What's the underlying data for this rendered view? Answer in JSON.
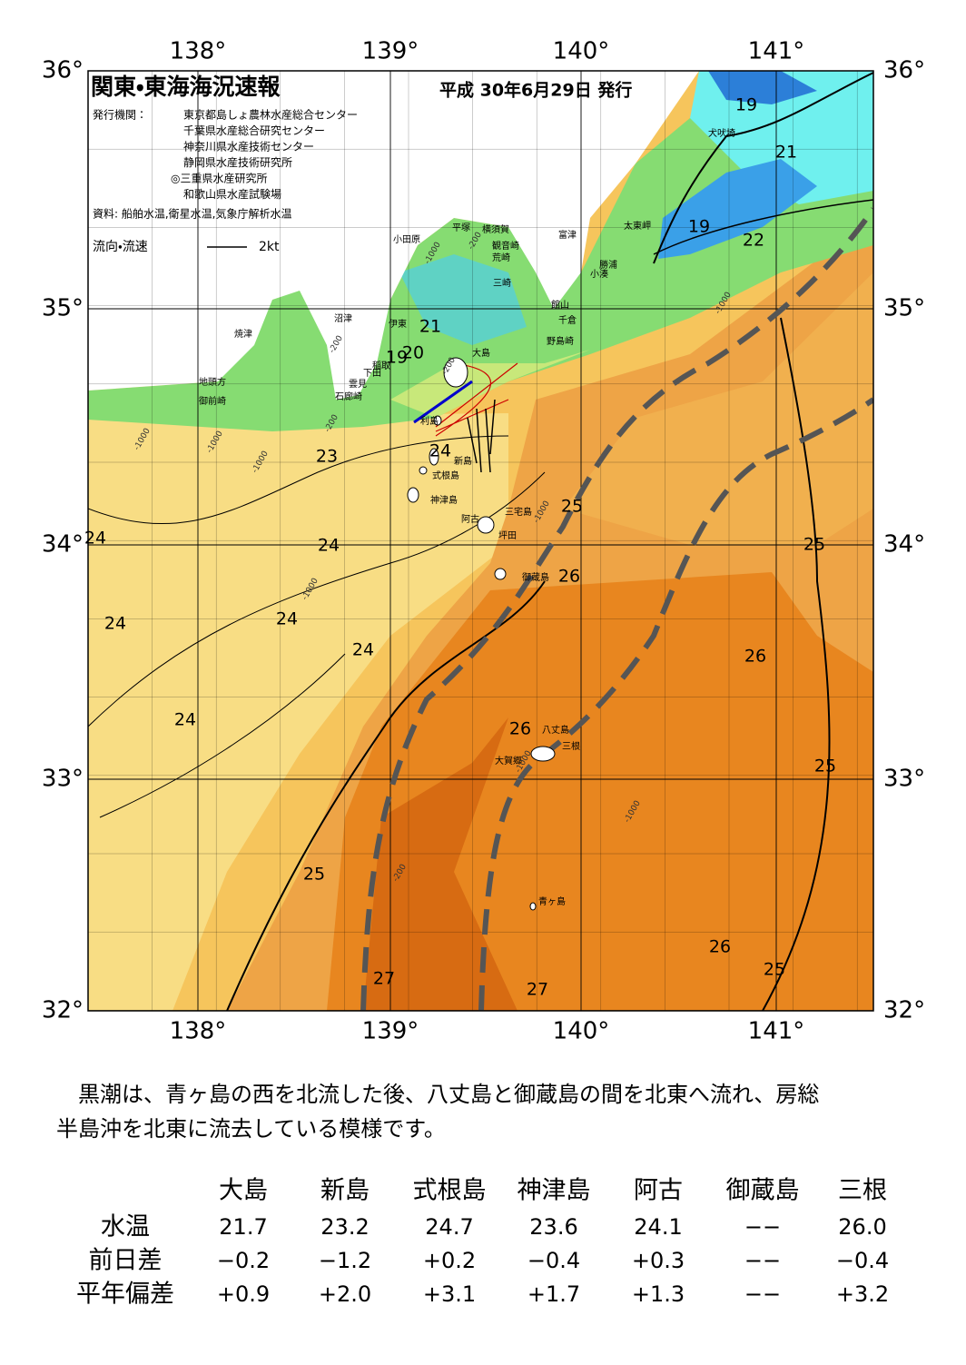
{
  "header": {
    "title": "関東・東海海況速報",
    "date": "平成 30年6月29日 発行",
    "publisher_label": "発行機関：",
    "publishers": [
      "東京都島しょ農林水産総合センター",
      "千葉県水産総合研究センター",
      "神奈川県水産技術センター",
      "静岡県水産技術研究所",
      "◎三重県水産研究所",
      "和歌山県水産試験場"
    ],
    "source": "資料: 船舶水温,衛星水温,気象庁解析水温",
    "legend_label": "流向・流速",
    "legend_speed": "2kt"
  },
  "map": {
    "lon_labels": [
      "138°",
      "139°",
      "140°",
      "141°"
    ],
    "lat_labels": [
      "36°",
      "35°",
      "34°",
      "33°",
      "32°"
    ],
    "isotherm_labels": [
      "19",
      "21",
      "19",
      "22",
      "21",
      "19",
      "20",
      "23",
      "24",
      "25",
      "24",
      "24",
      "26",
      "25",
      "24",
      "24",
      "24",
      "26",
      "24",
      "26",
      "25",
      "25",
      "26",
      "25",
      "27",
      "27"
    ],
    "depth_labels": [
      "-200",
      "-1000",
      "-200",
      "-1000",
      "-200",
      "-1000",
      "-200",
      "-1000",
      "-1000",
      "-1000",
      "-1000",
      "-1000",
      "-200",
      "-1000"
    ],
    "place_names": [
      "犬吠埼",
      "太東岬",
      "勝浦",
      "小湊",
      "館山",
      "千倉",
      "野島崎",
      "富津",
      "三崎",
      "観音崎",
      "荒崎",
      "横須賀",
      "平塚",
      "小田原",
      "沼津",
      "伊東",
      "稲取",
      "下田",
      "雲見",
      "石廊崎",
      "焼津",
      "地頭方",
      "御前崎",
      "大島",
      "利島",
      "新島",
      "式根島",
      "神津島",
      "三宅島",
      "阿古",
      "坪田",
      "御蔵島",
      "八丈島",
      "三根",
      "大賀郷",
      "青ヶ島"
    ]
  },
  "summary": {
    "lines": [
      "　黒潮は、青ヶ島の西を北流した後、八丈島と御蔵島の間を北東へ流れ、房総",
      "半島沖を北東に流去している模様です。"
    ]
  },
  "table": {
    "columns": [
      "大島",
      "新島",
      "式根島",
      "神津島",
      "阿古",
      "御蔵島",
      "三根"
    ],
    "rows": [
      {
        "label": "水温",
        "values": [
          "21.7",
          "23.2",
          "24.7",
          "23.6",
          "24.1",
          "−−",
          "26.0"
        ]
      },
      {
        "label": "前日差",
        "values": [
          "−0.2",
          "−1.2",
          "+0.2",
          "−0.4",
          "+0.3",
          "−−",
          "−0.4"
        ]
      },
      {
        "label": "平年偏差",
        "values": [
          "+0.9",
          "+2.0",
          "+3.1",
          "+1.7",
          "+1.3",
          "−−",
          "+3.2"
        ]
      }
    ]
  }
}
